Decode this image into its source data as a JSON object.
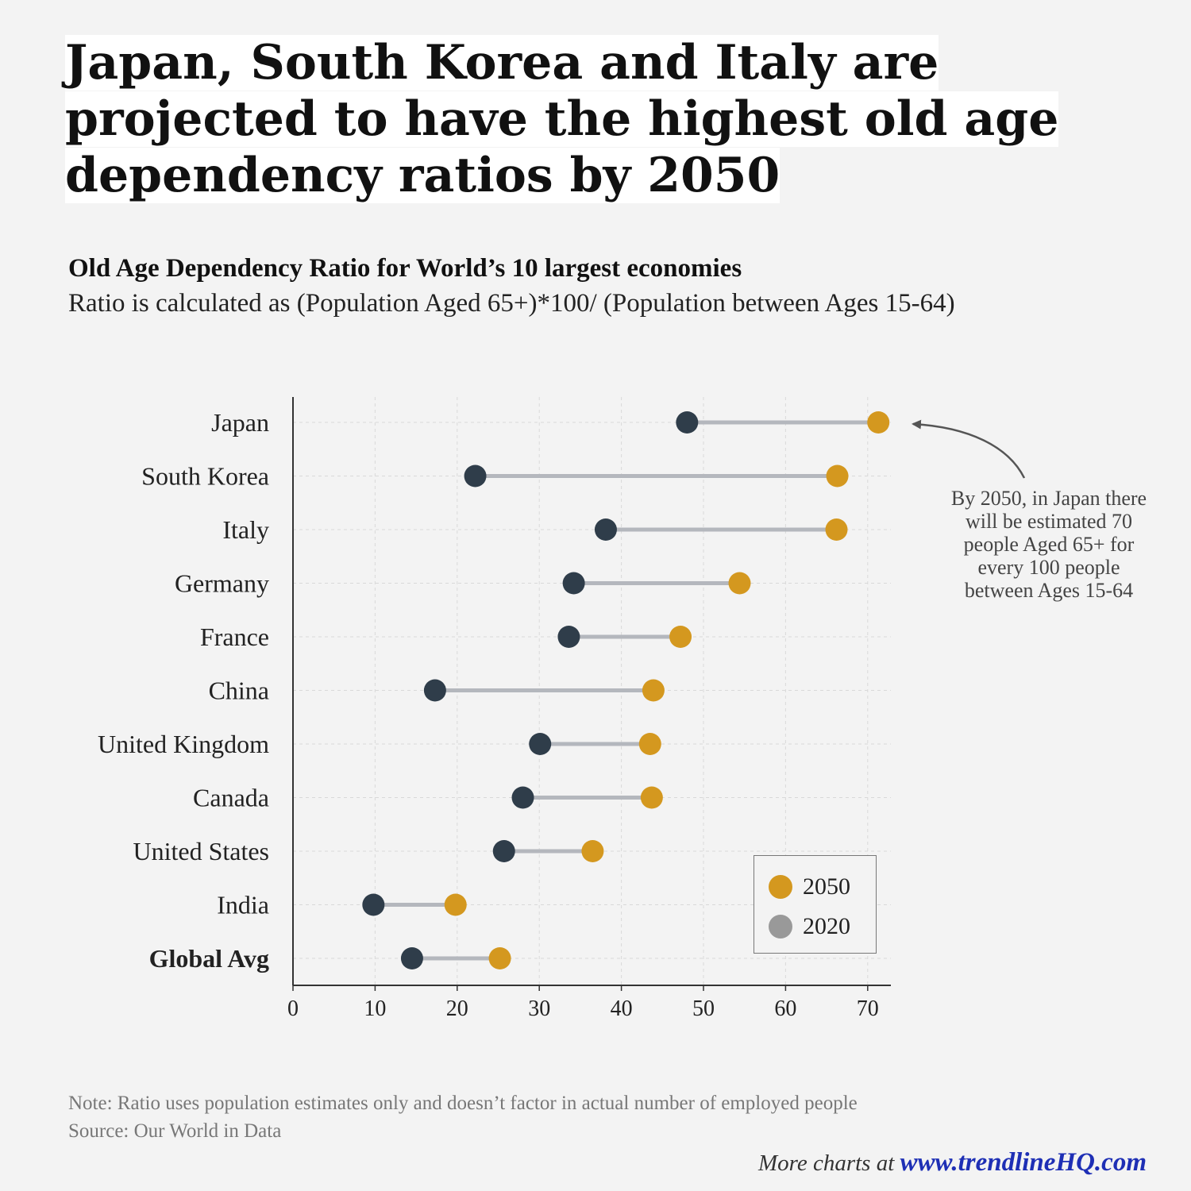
{
  "headline": "Japan, South Korea and Italy are projected to have the highest old age dependency ratios by 2050",
  "subtitle": "Old Age Dependency Ratio for World’s 10 largest economies",
  "subtitle2": "Ratio is calculated as (Population Aged 65+)*100/ (Population between Ages 15-64)",
  "annotation": "By 2050, in Japan there will be estimated 70 people Aged 65+ for every 100 people between Ages 15-64",
  "legend": {
    "items": [
      {
        "label": "2050",
        "color": "#d4981f"
      },
      {
        "label": "2020",
        "color": "#999999"
      }
    ]
  },
  "footer": {
    "note": "Note: Ratio uses population estimates only and doesn’t factor in actual number of employed people",
    "source": "Source: Our World in Data",
    "credit_prefix": "More charts at",
    "credit_link": "www.trendlineHQ.com"
  },
  "colors": {
    "y2020": "#2f3d4a",
    "y2050": "#d4981f",
    "connector": "#b4b7bd",
    "axis": "#333333",
    "grid": "#d9d9d9"
  },
  "chart_data": {
    "type": "dumbbell",
    "title": "Old Age Dependency Ratio for World’s 10 largest economies",
    "categories": [
      "Japan",
      "South Korea",
      "Italy",
      "Germany",
      "France",
      "China",
      "United Kingdom",
      "Canada",
      "United States",
      "India",
      "Global Avg"
    ],
    "bold_categories": [
      "Global Avg"
    ],
    "series": [
      {
        "name": "2020",
        "values": [
          48,
          22.2,
          38.1,
          34.2,
          33.6,
          17.3,
          30.1,
          28,
          25.7,
          9.8,
          14.5
        ]
      },
      {
        "name": "2050",
        "values": [
          71.3,
          66.3,
          66.2,
          54.4,
          47.2,
          43.9,
          43.5,
          43.7,
          36.5,
          19.8,
          25.2
        ]
      }
    ],
    "xlim": [
      0,
      72
    ],
    "xticks": [
      0,
      10,
      20,
      30,
      40,
      50,
      60,
      70
    ],
    "xlabel": "",
    "ylabel": "",
    "grid": true,
    "legend_position": "bottom-right"
  }
}
